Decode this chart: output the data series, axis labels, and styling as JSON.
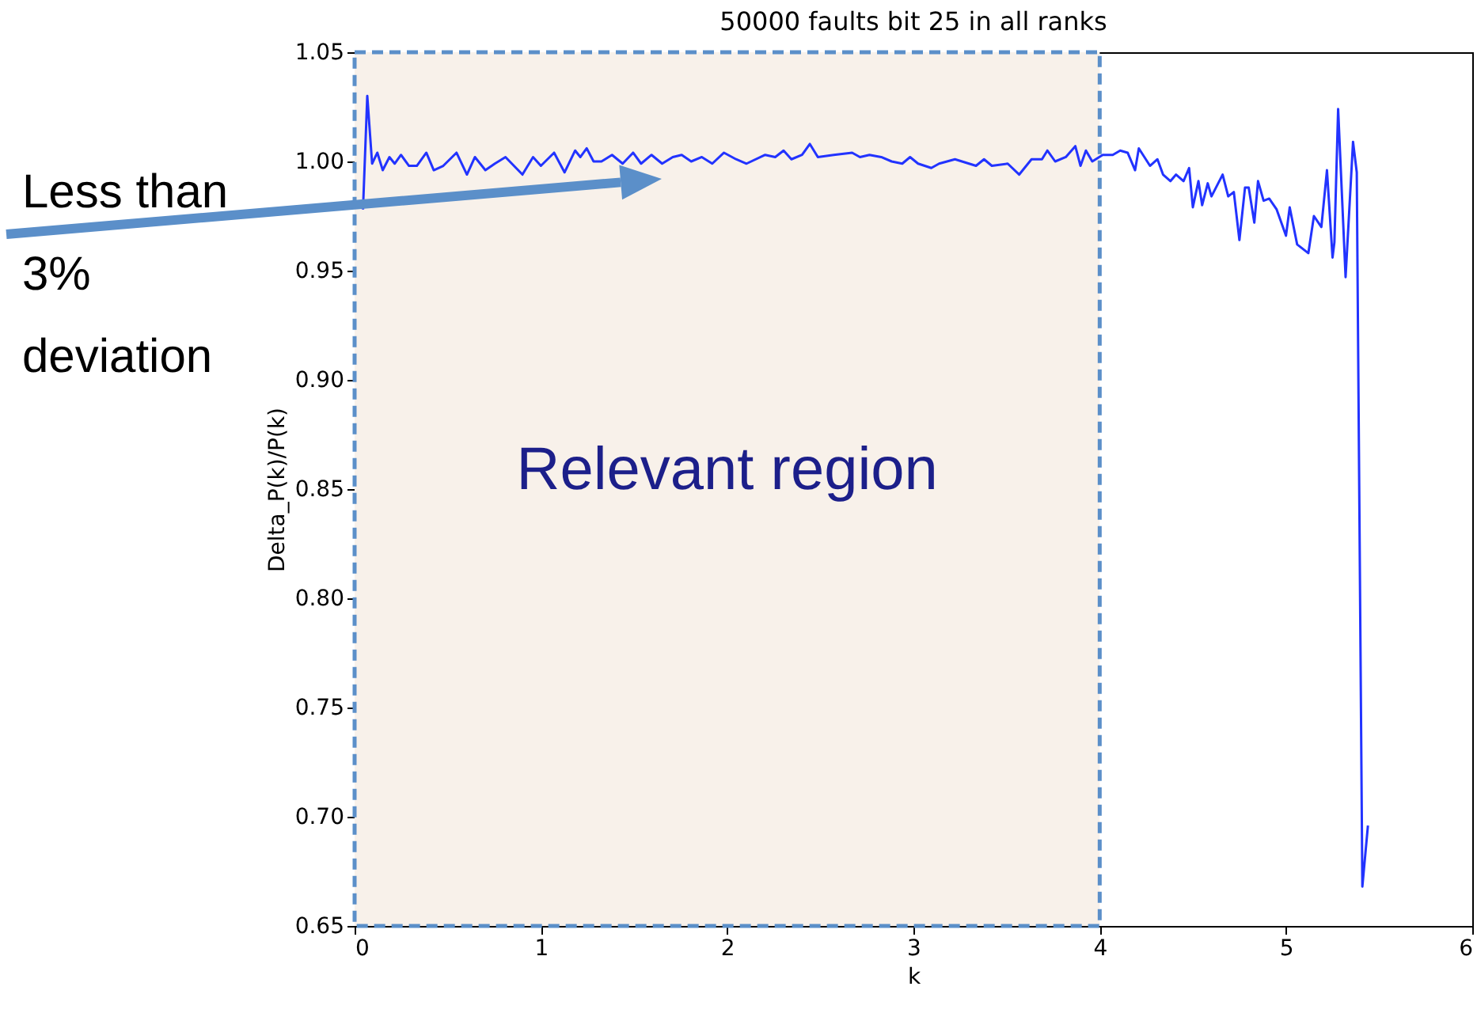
{
  "chart_data": {
    "type": "line",
    "title": "50000 faults bit 25 in all ranks",
    "xlabel": "k",
    "ylabel": "Delta_P(k)/P(k)",
    "xlim": [
      0,
      6
    ],
    "xticks": [
      0,
      1,
      2,
      3,
      4,
      5,
      6
    ],
    "ylim": [
      0.65,
      1.05
    ],
    "yticks": [
      0.65,
      {
        "value": 0.7,
        "label": "0.70"
      },
      0.75,
      {
        "value": 0.8,
        "label": "0.80"
      },
      0.85,
      {
        "value": 0.9,
        "label": "0.90"
      },
      0.95,
      {
        "value": 1.0,
        "label": "1.00"
      },
      1.05
    ],
    "grid": false,
    "bands": [
      {
        "axis": "x",
        "from": 0,
        "to": 4,
        "label": "Relevant region",
        "color": "#f8f1ea"
      }
    ],
    "annotations": [
      "Less than 3% deviation"
    ],
    "series": [
      {
        "color": "#2233ff",
        "x": [
          0.045,
          0.068,
          0.094,
          0.122,
          0.151,
          0.187,
          0.215,
          0.249,
          0.292,
          0.334,
          0.385,
          0.425,
          0.476,
          0.547,
          0.603,
          0.646,
          0.702,
          0.753,
          0.81,
          0.844,
          0.901,
          0.958,
          1.0,
          1.071,
          1.127,
          1.184,
          1.212,
          1.246,
          1.283,
          1.325,
          1.382,
          1.439,
          1.495,
          1.538,
          1.594,
          1.651,
          1.708,
          1.756,
          1.807,
          1.864,
          1.92,
          1.983,
          2.048,
          2.104,
          2.204,
          2.258,
          2.303,
          2.345,
          2.402,
          2.444,
          2.487,
          2.572,
          2.671,
          2.713,
          2.764,
          2.827,
          2.883,
          2.94,
          2.982,
          3.025,
          3.096,
          3.138,
          3.223,
          3.336,
          3.379,
          3.421,
          3.506,
          3.568,
          3.634,
          3.69,
          3.719,
          3.761,
          3.818,
          3.869,
          3.897,
          3.926,
          3.96,
          4.016,
          4.07,
          4.11,
          4.15,
          4.19,
          4.21,
          4.27,
          4.31,
          4.34,
          4.38,
          4.41,
          4.45,
          4.48,
          4.5,
          4.53,
          4.55,
          4.58,
          4.6,
          4.63,
          4.66,
          4.69,
          4.72,
          4.75,
          4.78,
          4.8,
          4.83,
          4.85,
          4.88,
          4.91,
          4.95,
          5.0,
          5.02,
          5.06,
          5.12,
          5.15,
          5.19,
          5.22,
          5.25,
          5.26,
          5.28,
          5.32,
          5.36,
          5.38,
          5.41,
          5.44
        ],
        "values": [
          0.978,
          1.03,
          0.999,
          1.004,
          0.996,
          1.002,
          0.999,
          1.003,
          0.998,
          0.998,
          1.004,
          0.996,
          0.998,
          1.004,
          0.994,
          1.002,
          0.996,
          0.999,
          1.002,
          0.999,
          0.994,
          1.002,
          0.998,
          1.004,
          0.995,
          1.005,
          1.002,
          1.006,
          1.0,
          1.0,
          1.003,
          0.999,
          1.004,
          0.999,
          1.003,
          0.999,
          1.002,
          1.003,
          1.0,
          1.002,
          0.999,
          1.004,
          1.001,
          0.999,
          1.003,
          1.002,
          1.005,
          1.001,
          1.003,
          1.008,
          1.002,
          1.003,
          1.004,
          1.002,
          1.003,
          1.002,
          1.0,
          0.999,
          1.002,
          0.999,
          0.997,
          0.999,
          1.001,
          0.998,
          1.001,
          0.998,
          0.999,
          0.994,
          1.001,
          1.001,
          1.005,
          1.0,
          1.002,
          1.007,
          0.998,
          1.005,
          1.0,
          1.003,
          1.003,
          1.005,
          1.004,
          0.996,
          1.006,
          0.998,
          1.001,
          0.994,
          0.991,
          0.994,
          0.991,
          0.997,
          0.979,
          0.991,
          0.98,
          0.99,
          0.984,
          0.989,
          0.994,
          0.984,
          0.986,
          0.964,
          0.988,
          0.988,
          0.972,
          0.991,
          0.982,
          0.983,
          0.978,
          0.966,
          0.979,
          0.962,
          0.958,
          0.975,
          0.97,
          0.996,
          0.956,
          0.963,
          1.024,
          0.947,
          1.009,
          0.995,
          0.668,
          0.696
        ]
      }
    ]
  }
}
